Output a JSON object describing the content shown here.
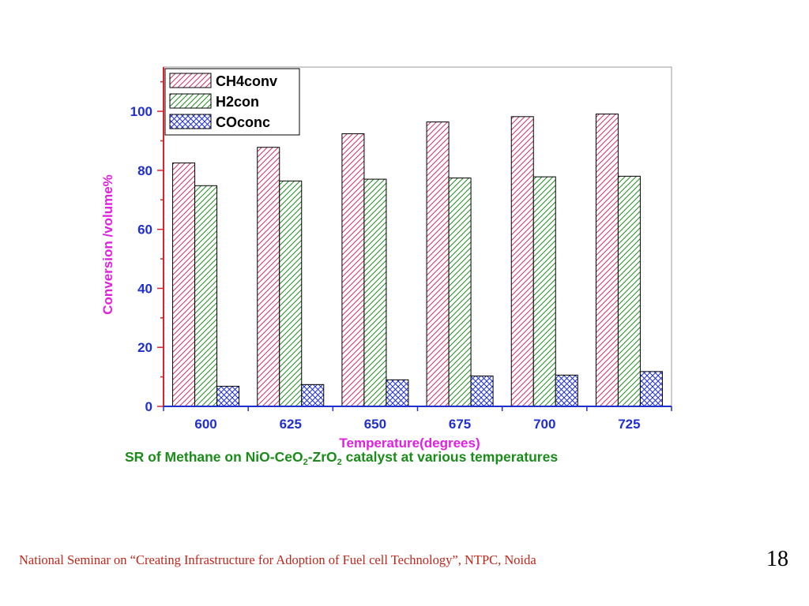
{
  "chart_data": {
    "type": "bar",
    "title": "",
    "xlabel": "Temperature(degrees)",
    "ylabel": "Conversion /volume%",
    "categories": [
      "600",
      "625",
      "650",
      "675",
      "700",
      "725"
    ],
    "series": [
      {
        "name": "CH4conv",
        "values": [
          82.5,
          87.8,
          92.4,
          96.4,
          98.2,
          99.1
        ],
        "color": "#cc3366",
        "pattern": "diagonal-hatch"
      },
      {
        "name": "H2con",
        "values": [
          74.8,
          76.4,
          77.0,
          77.4,
          77.8,
          78.0
        ],
        "color": "#228b22",
        "pattern": "diagonal-hatch"
      },
      {
        "name": "COconc",
        "values": [
          6.8,
          7.4,
          9.0,
          10.3,
          10.6,
          11.8
        ],
        "color": "#1f2fcf",
        "pattern": "cross-hatch"
      }
    ],
    "ylim": [
      0,
      115
    ],
    "yticks": [
      "0",
      "20",
      "40",
      "60",
      "80",
      "100"
    ],
    "grid": false,
    "legend_position": "top-left",
    "colors": {
      "axis_left": "#e0202a",
      "axis_bottom": "#1f2fcf",
      "tick_label": "#1f2fcf",
      "axis_title": "#e020e0",
      "caption": "#1a8c1a",
      "footer": "#c0261a"
    }
  },
  "caption": {
    "part1": "SR of Methane on NiO-CeO",
    "sub1": "2",
    "part2": "-ZrO",
    "sub2": "2",
    "part3": " catalyst at various temperatures"
  },
  "footer": {
    "text": "National Seminar on “Creating Infrastructure for Adoption of Fuel cell Technology”,  NTPC,   Noida",
    "page_number": "18"
  }
}
